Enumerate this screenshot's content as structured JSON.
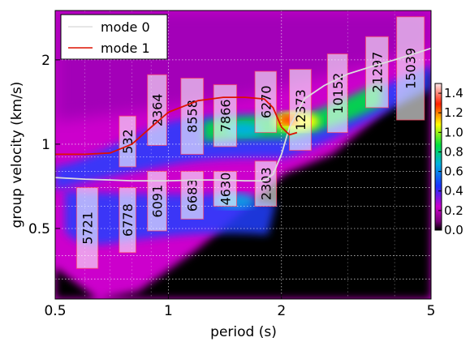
{
  "chart_data": {
    "type": "heatmap",
    "xlabel": "period (s)",
    "ylabel": "group velocity (km/s)",
    "xscale": "log",
    "yscale": "log",
    "xlim": [
      0.5,
      5
    ],
    "ylim": [
      0.28,
      3.0
    ],
    "xticks": [
      {
        "v": 0.5,
        "label": "0.5"
      },
      {
        "v": 1,
        "label": "1"
      },
      {
        "v": 2,
        "label": "2"
      },
      {
        "v": 5,
        "label": "5"
      }
    ],
    "yticks": [
      {
        "v": 0.5,
        "label": "0.5"
      },
      {
        "v": 1,
        "label": "1"
      },
      {
        "v": 2,
        "label": "2"
      }
    ],
    "grid": true,
    "legend_position": "top-left",
    "colorbar": {
      "min": 0.0,
      "max": 1.5,
      "ticks": [
        "0.0",
        "0.2",
        "0.4",
        "0.6",
        "0.8",
        "1.0",
        "1.2",
        "1.4"
      ],
      "tick_values": [
        0.0,
        0.2,
        0.4,
        0.6,
        0.8,
        1.0,
        1.2,
        1.4
      ],
      "colors": [
        "#000000",
        "#7a007a",
        "#cc00cc",
        "#1a33ff",
        "#00b0e0",
        "#00e040",
        "#ffff00",
        "#ff2000",
        "#ffe6e6"
      ]
    },
    "series": [
      {
        "name": "mode 0",
        "color": "#dddddd",
        "x": [
          0.5,
          0.6,
          0.7,
          0.8,
          0.9,
          1.0,
          1.2,
          1.4,
          1.6,
          1.8,
          1.9,
          2.0,
          2.1,
          2.3,
          2.6,
          3.0,
          3.5,
          4.0,
          4.5,
          5.0
        ],
        "y": [
          0.76,
          0.75,
          0.745,
          0.74,
          0.74,
          0.74,
          0.745,
          0.745,
          0.74,
          0.74,
          0.78,
          0.92,
          1.15,
          1.45,
          1.62,
          1.78,
          1.9,
          2.0,
          2.1,
          2.2
        ]
      },
      {
        "name": "mode 1",
        "color": "#dd1100",
        "x": [
          0.5,
          0.6,
          0.7,
          0.8,
          0.9,
          1.0,
          1.2,
          1.4,
          1.6,
          1.8,
          1.9,
          2.0,
          2.1,
          2.2
        ],
        "y": [
          0.92,
          0.92,
          0.93,
          1.0,
          1.15,
          1.3,
          1.43,
          1.47,
          1.47,
          1.45,
          1.35,
          1.15,
          1.08,
          1.1
        ]
      }
    ],
    "boxes": [
      {
        "label": "5721",
        "x0": 0.57,
        "x1": 0.65,
        "y0": 0.36,
        "y1": 0.7
      },
      {
        "label": "532",
        "x0": 0.74,
        "x1": 0.82,
        "y0": 0.83,
        "y1": 1.26
      },
      {
        "label": "6778",
        "x0": 0.74,
        "x1": 0.82,
        "y0": 0.41,
        "y1": 0.7
      },
      {
        "label": "2364",
        "x0": 0.88,
        "x1": 0.99,
        "y0": 0.99,
        "y1": 1.77
      },
      {
        "label": "6091",
        "x0": 0.88,
        "x1": 0.99,
        "y0": 0.49,
        "y1": 0.8
      },
      {
        "label": "8558",
        "x0": 1.08,
        "x1": 1.24,
        "y0": 0.92,
        "y1": 1.72
      },
      {
        "label": "6683",
        "x0": 1.08,
        "x1": 1.24,
        "y0": 0.54,
        "y1": 0.8
      },
      {
        "label": "7866",
        "x0": 1.32,
        "x1": 1.52,
        "y0": 0.98,
        "y1": 1.63
      },
      {
        "label": "4630",
        "x0": 1.32,
        "x1": 1.52,
        "y0": 0.6,
        "y1": 0.8
      },
      {
        "label": "6270",
        "x0": 1.7,
        "x1": 1.94,
        "y0": 1.1,
        "y1": 1.82
      },
      {
        "label": "2303",
        "x0": 1.7,
        "x1": 1.94,
        "y0": 0.6,
        "y1": 0.87
      },
      {
        "label": "12373",
        "x0": 2.1,
        "x1": 2.4,
        "y0": 0.95,
        "y1": 1.85
      },
      {
        "label": "10152",
        "x0": 2.65,
        "x1": 3.0,
        "y0": 1.1,
        "y1": 2.1
      },
      {
        "label": "21297",
        "x0": 3.35,
        "x1": 3.85,
        "y0": 1.35,
        "y1": 2.42
      },
      {
        "label": "15039",
        "x0": 4.05,
        "x1": 4.8,
        "y0": 1.22,
        "y1": 2.85
      }
    ]
  }
}
